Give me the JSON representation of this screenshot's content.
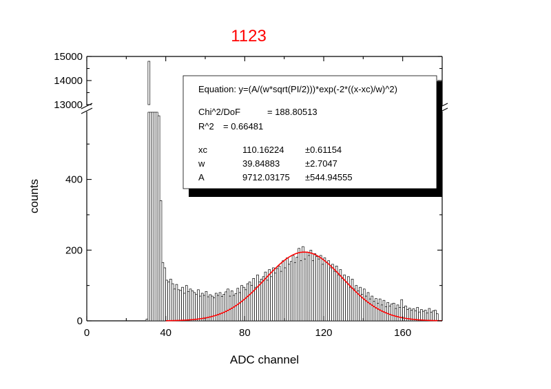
{
  "chart_data": {
    "type": "bar",
    "title": "1123",
    "title_color": "#ff0000",
    "xlabel": "ADC channel",
    "ylabel": "counts",
    "xlim": [
      0,
      180
    ],
    "x_ticks": [
      "0",
      "40",
      "80",
      "120",
      "160"
    ],
    "y_ticks": [
      "0",
      "200",
      "400",
      "13000",
      "14000",
      "15000"
    ],
    "y_axis_break": {
      "lower_range": [
        0,
        590
      ],
      "upper_range": [
        13000,
        15000
      ]
    },
    "bar_color": "#ffffff",
    "bar_edge_color": "#000000",
    "fit_color": "#ff0000",
    "histogram": {
      "bin_width": 1,
      "x_start": 30,
      "counts": [
        5,
        14800,
        12600,
        9000,
        2850,
        1900,
        580,
        340,
        165,
        150,
        115,
        110,
        118,
        105,
        90,
        103,
        88,
        86,
        95,
        78,
        100,
        83,
        90,
        85,
        80,
        75,
        88,
        70,
        78,
        72,
        83,
        68,
        74,
        70,
        65,
        78,
        72,
        80,
        69,
        75,
        82,
        90,
        70,
        85,
        72,
        77,
        92,
        80,
        100,
        95,
        88,
        105,
        110,
        100,
        120,
        95,
        130,
        110,
        118,
        125,
        138,
        115,
        145,
        125,
        150,
        135,
        148,
        155,
        140,
        170,
        150,
        178,
        160,
        168,
        185,
        165,
        180,
        205,
        170,
        210,
        175,
        195,
        185,
        200,
        170,
        190,
        182,
        175,
        185,
        160,
        178,
        165,
        170,
        150,
        160,
        140,
        155,
        130,
        145,
        120,
        130,
        110,
        125,
        95,
        118,
        90,
        100,
        85,
        95,
        75,
        90,
        70,
        80,
        62,
        70,
        55,
        63,
        50,
        62,
        45,
        58,
        40,
        52,
        42,
        48,
        50,
        35,
        45,
        38,
        60,
        38,
        42,
        32,
        36,
        30,
        34,
        28,
        38,
        25,
        32,
        27,
        30,
        22,
        35,
        24,
        28,
        30,
        20
      ]
    },
    "fit_curve": {
      "equation": "y=(A/(w*sqrt(PI/2)))*exp(-2*((x-xc)/w)^2)",
      "xc": 110.16224,
      "w": 39.84883,
      "A": 9712.03175
    }
  },
  "stats_box": {
    "equation_label": "Equation: y=(A/(w*sqrt(PI/2)))*exp(-2*((x-xc)/w)^2)",
    "chi_label": "Chi^2/DoF",
    "chi_value": "= 188.80513",
    "r2_label": "R^2",
    "r2_value": "=  0.66481",
    "params": [
      {
        "name": "xc",
        "value": "110.16224",
        "error": "±0.61154"
      },
      {
        "name": "w",
        "value": "39.84883",
        "error": "±2.7047"
      },
      {
        "name": "A",
        "value": "9712.03175",
        "error": "±544.94555"
      }
    ]
  }
}
